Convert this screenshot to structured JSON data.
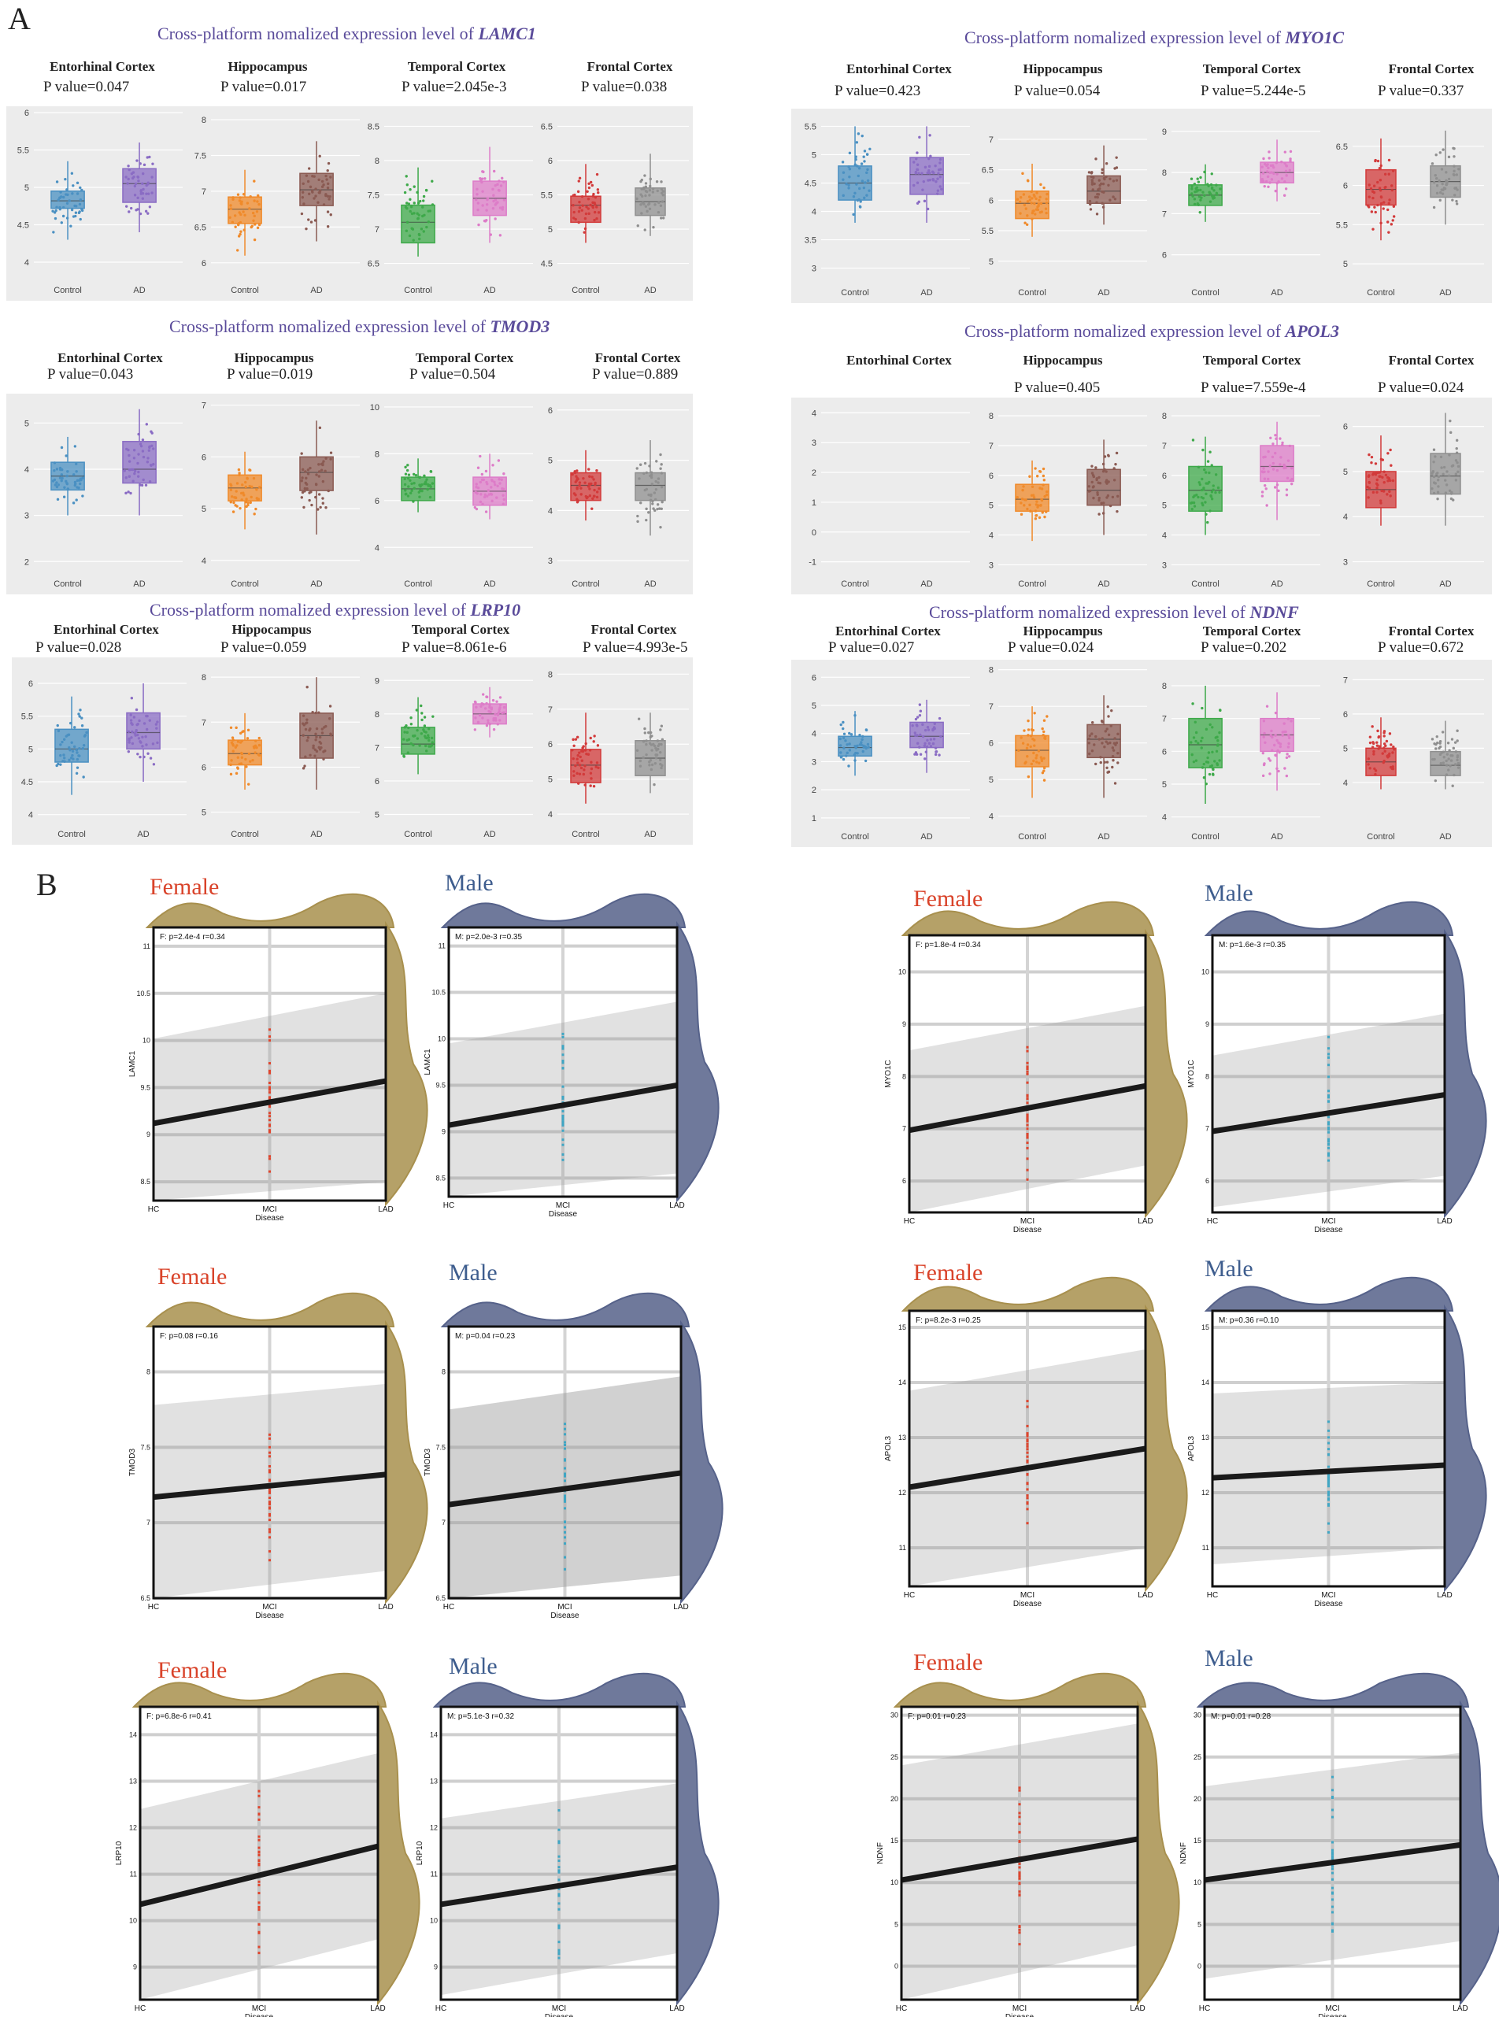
{
  "panel_a_label": "A",
  "panel_b_label": "B",
  "title_prefix": "Cross-platform nomalized expression level of",
  "regions": [
    "Entorhinal Cortex",
    "Hippocampus",
    "Temporal Cortex",
    "Frontal Cortex"
  ],
  "categories": [
    "Control",
    "AD"
  ],
  "region_colors": {
    "Entorhinal Cortex": [
      "#4a90c2",
      "#8a6cc4"
    ],
    "Hippocampus": [
      "#f08a2a",
      "#8a5a52"
    ],
    "Temporal Cortex": [
      "#3ea94a",
      "#dd7cc8"
    ],
    "Frontal Cortex": [
      "#d23a3a",
      "#8f8f8f"
    ]
  },
  "female_label": "Female",
  "male_label": "Male",
  "female_color": "#d9432a",
  "male_color": "#3e5d8e",
  "female_fill": "#a8904e",
  "male_fill": "#56628a",
  "chart_data": [
    {
      "type": "box",
      "gene": "LAMC1",
      "p_values": [
        "P value=0.047",
        "P value=0.017",
        "P value=2.045e-3",
        "P value=0.038"
      ],
      "ylims": [
        [
          3.8,
          6.0
        ],
        [
          5.8,
          8.1
        ],
        [
          6.3,
          8.7
        ],
        [
          4.3,
          6.7
        ]
      ],
      "yticks": [
        [
          4,
          4.5,
          5,
          5.5,
          6
        ],
        [
          6,
          6.5,
          7,
          7.5,
          8
        ],
        [
          6.5,
          7,
          7.5,
          8,
          8.5
        ],
        [
          4.5,
          5,
          5.5,
          6,
          6.5
        ]
      ],
      "boxes": [
        [
          [
            4.3,
            4.72,
            4.82,
            4.95,
            5.35
          ],
          [
            4.4,
            4.8,
            5.05,
            5.25,
            5.6
          ]
        ],
        [
          [
            6.1,
            6.55,
            6.75,
            6.92,
            7.3
          ],
          [
            6.3,
            6.8,
            7.02,
            7.25,
            7.7
          ]
        ],
        [
          [
            6.6,
            6.8,
            7.1,
            7.35,
            7.9
          ],
          [
            6.8,
            7.2,
            7.45,
            7.7,
            8.2
          ]
        ],
        [
          [
            4.8,
            5.1,
            5.35,
            5.48,
            5.95
          ],
          [
            4.9,
            5.2,
            5.4,
            5.6,
            6.1
          ]
        ]
      ]
    },
    {
      "type": "box",
      "gene": "MYO1C",
      "p_values": [
        "P value=0.423",
        "P value=0.054",
        "P value=5.244e-5",
        "P value=0.337"
      ],
      "ylims": [
        [
          2.8,
          5.7
        ],
        [
          4.7,
          7.4
        ],
        [
          5.4,
          9.4
        ],
        [
          4.8,
          6.9
        ]
      ],
      "yticks": [
        [
          3,
          3.5,
          4,
          4.5,
          5,
          5.5
        ],
        [
          5,
          5.5,
          6,
          6.5,
          7
        ],
        [
          6,
          7,
          8,
          9
        ],
        [
          5,
          5.5,
          6,
          6.5
        ]
      ],
      "boxes": [
        [
          [
            3.8,
            4.2,
            4.5,
            4.8,
            5.5
          ],
          [
            3.8,
            4.3,
            4.65,
            4.95,
            5.5
          ]
        ],
        [
          [
            5.4,
            5.7,
            5.95,
            6.15,
            6.6
          ],
          [
            5.6,
            5.95,
            6.15,
            6.4,
            6.9
          ]
        ],
        [
          [
            6.8,
            7.2,
            7.45,
            7.7,
            8.2
          ],
          [
            7.3,
            7.75,
            8.0,
            8.25,
            8.8
          ]
        ],
        [
          [
            5.3,
            5.75,
            5.95,
            6.2,
            6.6
          ],
          [
            5.5,
            5.85,
            6.05,
            6.25,
            6.7
          ]
        ]
      ]
    },
    {
      "type": "box",
      "gene": "TMOD3",
      "p_values": [
        "P value=0.043",
        "P value=0.019",
        "P value=0.504",
        "P value=0.889"
      ],
      "ylims": [
        [
          1.8,
          5.5
        ],
        [
          3.8,
          7.1
        ],
        [
          3.0,
          10.3
        ],
        [
          2.8,
          6.2
        ]
      ],
      "yticks": [
        [
          2,
          3,
          4,
          5
        ],
        [
          4,
          5,
          6,
          7
        ],
        [
          4,
          6,
          8,
          10
        ],
        [
          3,
          4,
          5,
          6
        ]
      ],
      "boxes": [
        [
          [
            3.0,
            3.55,
            3.85,
            4.15,
            4.7
          ],
          [
            3.0,
            3.7,
            4.0,
            4.6,
            5.3
          ]
        ],
        [
          [
            4.6,
            5.15,
            5.4,
            5.65,
            6.1
          ],
          [
            4.5,
            5.35,
            5.7,
            6.0,
            6.7
          ]
        ],
        [
          [
            5.5,
            6.0,
            6.5,
            7.0,
            7.8
          ],
          [
            5.2,
            5.8,
            6.4,
            7.0,
            8.0
          ]
        ],
        [
          [
            3.8,
            4.2,
            4.5,
            4.75,
            5.2
          ],
          [
            3.5,
            4.2,
            4.5,
            4.75,
            5.4
          ]
        ]
      ]
    },
    {
      "type": "box",
      "gene": "APOL3",
      "p_values": [
        "",
        "P value=0.405",
        "P value=7.559e-4",
        "P value=0.024"
      ],
      "ylims": [
        [
          -1.3,
          4.3
        ],
        [
          2.8,
          8.4
        ],
        [
          2.8,
          8.4
        ],
        [
          2.8,
          6.5
        ]
      ],
      "yticks": [
        [
          -1,
          0,
          1,
          2,
          3,
          4
        ],
        [
          3,
          4,
          5,
          6,
          7,
          8
        ],
        [
          3,
          4,
          5,
          6,
          7,
          8
        ],
        [
          3,
          4,
          5,
          6
        ]
      ],
      "boxes": [
        null,
        [
          [
            3.8,
            4.8,
            5.2,
            5.7,
            6.5
          ],
          [
            4.0,
            5.0,
            5.5,
            6.2,
            7.2
          ]
        ],
        [
          [
            4.0,
            4.8,
            5.5,
            6.3,
            7.3
          ],
          [
            4.5,
            5.8,
            6.3,
            7.0,
            7.8
          ]
        ],
        [
          [
            3.8,
            4.2,
            4.6,
            5.0,
            5.8
          ],
          [
            3.8,
            4.5,
            4.9,
            5.4,
            6.3
          ]
        ]
      ]
    },
    {
      "type": "box",
      "gene": "LRP10",
      "p_values": [
        "P value=0.028",
        "P value=0.059",
        "P value=8.061e-6",
        "P value=4.993e-5"
      ],
      "ylims": [
        [
          3.9,
          6.3
        ],
        [
          4.8,
          8.3
        ],
        [
          4.8,
          9.5
        ],
        [
          3.8,
          8.3
        ]
      ],
      "yticks": [
        [
          4,
          4.5,
          5,
          5.5,
          6
        ],
        [
          5,
          6,
          7,
          8
        ],
        [
          5,
          6,
          7,
          8,
          9
        ],
        [
          4,
          5,
          6,
          7,
          8
        ]
      ],
      "boxes": [
        [
          [
            4.3,
            4.8,
            5.0,
            5.3,
            5.8
          ],
          [
            4.5,
            5.0,
            5.25,
            5.55,
            6.0
          ]
        ],
        [
          [
            5.5,
            6.05,
            6.3,
            6.6,
            7.2
          ],
          [
            5.5,
            6.2,
            6.7,
            7.2,
            8.0
          ]
        ],
        [
          [
            6.2,
            6.8,
            7.1,
            7.6,
            8.5
          ],
          [
            7.3,
            7.7,
            8.0,
            8.3,
            8.8
          ]
        ],
        [
          [
            4.3,
            4.9,
            5.4,
            5.85,
            6.9
          ],
          [
            4.6,
            5.1,
            5.6,
            6.1,
            6.9
          ]
        ]
      ]
    },
    {
      "type": "box",
      "gene": "NDNF",
      "p_values": [
        "P value=0.027",
        "P value=0.024",
        "P value=0.202",
        "P value=0.672"
      ],
      "ylims": [
        [
          0.8,
          6.4
        ],
        [
          3.8,
          8.1
        ],
        [
          3.8,
          8.6
        ],
        [
          2.8,
          7.4
        ]
      ],
      "yticks": [
        [
          1,
          2,
          3,
          4,
          5,
          6
        ],
        [
          4,
          5,
          6,
          7,
          8
        ],
        [
          4,
          5,
          6,
          7,
          8
        ],
        [
          4,
          5,
          6,
          7
        ]
      ],
      "boxes": [
        [
          [
            2.5,
            3.2,
            3.5,
            3.9,
            4.8
          ],
          [
            2.6,
            3.5,
            3.9,
            4.4,
            5.2
          ]
        ],
        [
          [
            4.5,
            5.35,
            5.8,
            6.2,
            7.0
          ],
          [
            4.5,
            5.6,
            6.1,
            6.5,
            7.3
          ]
        ],
        [
          [
            4.4,
            5.5,
            6.2,
            7.0,
            8.0
          ],
          [
            4.8,
            6.0,
            6.5,
            7.0,
            7.8
          ]
        ],
        [
          [
            3.8,
            4.2,
            4.6,
            5.0,
            5.9
          ],
          [
            3.8,
            4.2,
            4.5,
            4.9,
            5.8
          ]
        ]
      ]
    },
    {
      "type": "scatter",
      "gene": "LAMC1",
      "x": [
        "HC",
        "MCI",
        "LAD"
      ],
      "xlabel": "Disease",
      "female": {
        "stat": "F: p=2.4e-4 r=0.34",
        "yticks": [
          8.5,
          9.0,
          9.5,
          10.0,
          10.5,
          11.0
        ],
        "ylim": [
          8.3,
          11.2
        ],
        "fit": [
          9.12,
          9.57
        ],
        "ci_low": [
          8.15,
          8.5
        ],
        "ci_high": [
          10.02,
          10.5
        ]
      },
      "male": {
        "stat": "M: p=2.0e-3 r=0.35",
        "yticks": [
          8.5,
          9.0,
          9.5,
          10.0,
          10.5,
          11.0
        ],
        "ylim": [
          8.3,
          11.2
        ],
        "fit": [
          9.07,
          9.5
        ],
        "ci_low": [
          8.2,
          8.55
        ],
        "ci_high": [
          9.95,
          10.4
        ]
      }
    },
    {
      "type": "scatter",
      "gene": "MYO1C",
      "x": [
        "HC",
        "MCI",
        "LAD"
      ],
      "xlabel": "Disease",
      "female": {
        "stat": "F: p=1.8e-4 r=0.34",
        "yticks": [
          6,
          7,
          8,
          9,
          10
        ],
        "ylim": [
          5.4,
          10.7
        ],
        "fit": [
          6.97,
          7.82
        ],
        "ci_low": [
          5.4,
          6.3
        ],
        "ci_high": [
          8.5,
          9.35
        ]
      },
      "male": {
        "stat": "M: p=1.6e-3 r=0.35",
        "yticks": [
          6,
          7,
          8,
          9,
          10
        ],
        "ylim": [
          5.4,
          10.7
        ],
        "fit": [
          6.95,
          7.65
        ],
        "ci_low": [
          5.5,
          6.1
        ],
        "ci_high": [
          8.4,
          9.2
        ]
      }
    },
    {
      "type": "scatter",
      "gene": "TMOD3",
      "x": [
        "HC",
        "MCI",
        "LAD"
      ],
      "xlabel": "Disease",
      "female": {
        "stat": "F: p=0.08 r=0.16",
        "yticks": [
          6.5,
          7.0,
          7.5,
          8.0
        ],
        "ylim": [
          6.5,
          8.3
        ],
        "fit": [
          7.17,
          7.32
        ],
        "ci_low": [
          6.5,
          6.68
        ],
        "ci_high": [
          7.78,
          7.92
        ]
      },
      "male": {
        "stat": "M: p=0.04 r=0.23",
        "yticks": [
          6.5,
          7.0,
          7.5,
          8.0
        ],
        "ylim": [
          6.5,
          8.3
        ],
        "fit": [
          7.12,
          7.33
        ],
        "ci_low": [
          6.5,
          6.65
        ],
        "ci_high": [
          7.75,
          7.97
        ]
      }
    },
    {
      "type": "scatter",
      "gene": "APOL3",
      "x": [
        "HC",
        "MCI",
        "LAD"
      ],
      "xlabel": "Disease",
      "female": {
        "stat": "F: p=8.2e-3 r=0.25",
        "yticks": [
          11,
          12,
          13,
          14,
          15
        ],
        "ylim": [
          10.3,
          15.3
        ],
        "fit": [
          12.1,
          12.8
        ],
        "ci_low": [
          10.3,
          11.0
        ],
        "ci_high": [
          13.85,
          14.6
        ]
      },
      "male": {
        "stat": "M: p=0.36 r=0.10",
        "yticks": [
          11,
          12,
          13,
          14,
          15
        ],
        "ylim": [
          10.3,
          15.3
        ],
        "fit": [
          12.27,
          12.5
        ],
        "ci_low": [
          10.7,
          11.0
        ],
        "ci_high": [
          13.8,
          14.0
        ]
      }
    },
    {
      "type": "scatter",
      "gene": "LRP10",
      "x": [
        "HC",
        "MCI",
        "LAD"
      ],
      "xlabel": "Disease",
      "female": {
        "stat": "F: p=6.8e-6 r=0.41",
        "yticks": [
          9,
          10,
          11,
          12,
          13,
          14
        ],
        "ylim": [
          8.3,
          14.6
        ],
        "fit": [
          10.35,
          11.6
        ],
        "ci_low": [
          8.3,
          9.6
        ],
        "ci_high": [
          12.4,
          13.6
        ]
      },
      "male": {
        "stat": "M: p=5.1e-3 r=0.32",
        "yticks": [
          9,
          10,
          11,
          12,
          13,
          14
        ],
        "ylim": [
          8.3,
          14.6
        ],
        "fit": [
          10.35,
          11.15
        ],
        "ci_low": [
          8.4,
          9.3
        ],
        "ci_high": [
          12.2,
          12.95
        ]
      }
    },
    {
      "type": "scatter",
      "gene": "NDNF",
      "x": [
        "HC",
        "MCI",
        "LAD"
      ],
      "xlabel": "Disease",
      "female": {
        "stat": "F: p=0.01 r=0.23",
        "yticks": [
          0,
          5,
          10,
          15,
          20,
          25,
          30
        ],
        "ylim": [
          -4,
          31
        ],
        "fit": [
          10.3,
          15.2
        ],
        "ci_low": [
          -4,
          2.5
        ],
        "ci_high": [
          24,
          29
        ]
      },
      "male": {
        "stat": "M: p=0.01 r=0.28",
        "yticks": [
          0,
          5,
          10,
          15,
          20,
          25,
          30
        ],
        "ylim": [
          -4,
          31
        ],
        "fit": [
          10.3,
          14.5
        ],
        "ci_low": [
          -1.5,
          3.0
        ],
        "ci_high": [
          21.5,
          25.5
        ]
      }
    }
  ]
}
